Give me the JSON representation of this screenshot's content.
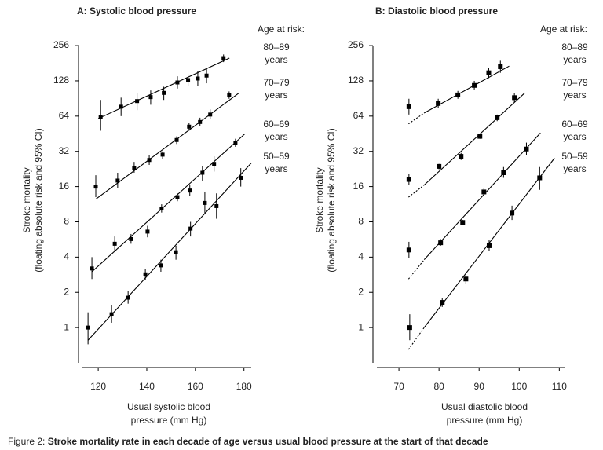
{
  "caption_label": "Figure 2: ",
  "caption_text": "Stroke mortality rate in each decade of age versus usual blood pressure at the start of that decade",
  "chart_data": [
    {
      "type": "scatter",
      "title": "A: Systolic blood pressure",
      "xlabel": [
        "Usual systolic blood",
        "pressure (mm Hg)"
      ],
      "ylabel": [
        "Stroke mortality",
        "(floating absolute risk and 95% CI)"
      ],
      "legend_title": "Age at risk:",
      "log_y": true,
      "color": "#000000",
      "fit_dashed_first": false,
      "xlim": [
        113.5,
        183
      ],
      "xticks": [
        120,
        140,
        160,
        180
      ],
      "ylim": [
        0.5,
        290
      ],
      "yticks": [
        1,
        2,
        4,
        8,
        16,
        32,
        64,
        128,
        256
      ],
      "series": [
        {
          "name": "80–89",
          "unit_label": "years",
          "x": [
            121,
            129.4,
            136,
            141.6,
            147,
            152.6,
            157,
            161,
            164.6,
            171.6
          ],
          "values": [
            63,
            77,
            86,
            93,
            101,
            124,
            130,
            134,
            142,
            200
          ],
          "lower": [
            48,
            64,
            72,
            80,
            88,
            110,
            115,
            115,
            122,
            185
          ],
          "upper": [
            88,
            92,
            100,
            106,
            114,
            140,
            146,
            155,
            165,
            215
          ],
          "fit_x": [
            120,
            174
          ],
          "fit_y": [
            61,
            200
          ]
        },
        {
          "name": "70–79",
          "unit_label": "years",
          "x": [
            119,
            128,
            134.8,
            141,
            146.5,
            152.3,
            157.4,
            161.9,
            166.1,
            173.9
          ],
          "values": [
            16,
            18,
            23,
            27,
            30,
            40,
            52,
            57,
            66,
            97
          ],
          "lower": [
            13,
            15.5,
            21,
            24.5,
            27.5,
            37,
            48,
            53,
            60,
            90
          ],
          "upper": [
            20,
            21,
            26,
            29.5,
            32,
            43,
            56,
            62,
            73,
            104
          ],
          "fit_x": [
            119,
            178
          ],
          "fit_y": [
            12.5,
            101
          ]
        },
        {
          "name": "60–69",
          "unit_label": "years",
          "x": [
            117.4,
            126.8,
            133.5,
            140.3,
            146.1,
            152.6,
            157.7,
            162.9,
            167.7,
            176.5
          ],
          "values": [
            3.2,
            5.2,
            5.7,
            6.6,
            10.4,
            13,
            14.8,
            21,
            25,
            38
          ],
          "lower": [
            2.6,
            4.5,
            5.2,
            5.9,
            9.6,
            12,
            13.3,
            18,
            21.5,
            35
          ],
          "upper": [
            4,
            6,
            6.3,
            7.4,
            11.3,
            14,
            16.5,
            24,
            29,
            41
          ],
          "fit_x": [
            117.4,
            180.3
          ],
          "fit_y": [
            3.0,
            45
          ]
        },
        {
          "name": "50–59",
          "unit_label": "years",
          "x": [
            115.8,
            125.5,
            132.3,
            139.4,
            145.8,
            152,
            158,
            163.9,
            168.7,
            178.7
          ],
          "values": [
            1.0,
            1.3,
            1.8,
            2.85,
            3.4,
            4.4,
            7,
            11.6,
            10.9,
            19
          ],
          "lower": [
            0.72,
            1.1,
            1.6,
            2.55,
            3,
            3.8,
            6,
            9.5,
            8.5,
            16
          ],
          "upper": [
            1.35,
            1.55,
            2.05,
            3.15,
            3.8,
            5,
            8,
            14.5,
            14,
            23
          ],
          "fit_x": [
            115.8,
            183
          ],
          "fit_y": [
            0.78,
            25.4
          ]
        }
      ]
    },
    {
      "type": "scatter",
      "title": "B: Diastolic blood pressure",
      "xlabel": [
        "Usual diastolic blood",
        "pressure (mm Hg)"
      ],
      "ylabel": [
        "Stroke mortality",
        "(floating absolute risk and 95% CI)"
      ],
      "legend_title": "Age at risk:",
      "log_y": true,
      "color": "#000000",
      "fit_dashed_first": true,
      "xlim": [
        64.5,
        111.5
      ],
      "xticks": [
        70,
        80,
        90,
        100,
        110
      ],
      "ylim": [
        0.5,
        290
      ],
      "yticks": [
        1,
        2,
        4,
        8,
        16,
        32,
        64,
        128,
        256
      ],
      "series": [
        {
          "name": "80–89",
          "unit_label": "years",
          "x": [
            72.5,
            79.8,
            84.7,
            88.8,
            92.4,
            95.3
          ],
          "values": [
            77,
            82,
            97,
            117,
            150,
            169
          ],
          "lower": [
            66,
            75,
            90,
            108,
            135,
            150
          ],
          "upper": [
            90,
            90,
            105,
            128,
            165,
            190
          ],
          "fit_x": [
            72.4,
            76.3,
            97.5
          ],
          "fit_y": [
            55,
            68,
            171
          ]
        },
        {
          "name": "70–79",
          "unit_label": "years",
          "x": [
            72.5,
            80,
            85.5,
            90.2,
            94.5,
            98.8
          ],
          "values": [
            18.4,
            23.8,
            29,
            43,
            62,
            92
          ],
          "lower": [
            16.5,
            22.5,
            27,
            41,
            58,
            84
          ],
          "upper": [
            20.5,
            25,
            31,
            45,
            66,
            100
          ],
          "fit_x": [
            72.4,
            76.3,
            101.4
          ],
          "fit_y": [
            13,
            16.5,
            101
          ]
        },
        {
          "name": "60–69",
          "unit_label": "years",
          "x": [
            72.5,
            80.4,
            85.9,
            91.2,
            96.1,
            101.8
          ],
          "values": [
            4.6,
            5.3,
            7.9,
            14.4,
            21,
            33.5
          ],
          "lower": [
            3.9,
            5,
            7.5,
            13.5,
            19,
            29.5
          ],
          "upper": [
            5.4,
            5.7,
            8.3,
            15.4,
            23.5,
            38
          ],
          "fit_x": [
            72.4,
            76.3,
            105.3
          ],
          "fit_y": [
            2.6,
            3.8,
            46
          ]
        },
        {
          "name": "50–59",
          "unit_label": "years",
          "x": [
            72.7,
            80.8,
            86.7,
            92.5,
            98.2,
            105.1
          ],
          "values": [
            1.0,
            1.64,
            2.6,
            5.0,
            9.5,
            19
          ],
          "lower": [
            0.78,
            1.5,
            2.35,
            4.5,
            8.3,
            15
          ],
          "upper": [
            1.3,
            1.8,
            2.85,
            5.6,
            11,
            23.5
          ],
          "fit_x": [
            72.4,
            76.3,
            108.8
          ],
          "fit_y": [
            0.65,
            1.0,
            28
          ]
        }
      ]
    }
  ]
}
